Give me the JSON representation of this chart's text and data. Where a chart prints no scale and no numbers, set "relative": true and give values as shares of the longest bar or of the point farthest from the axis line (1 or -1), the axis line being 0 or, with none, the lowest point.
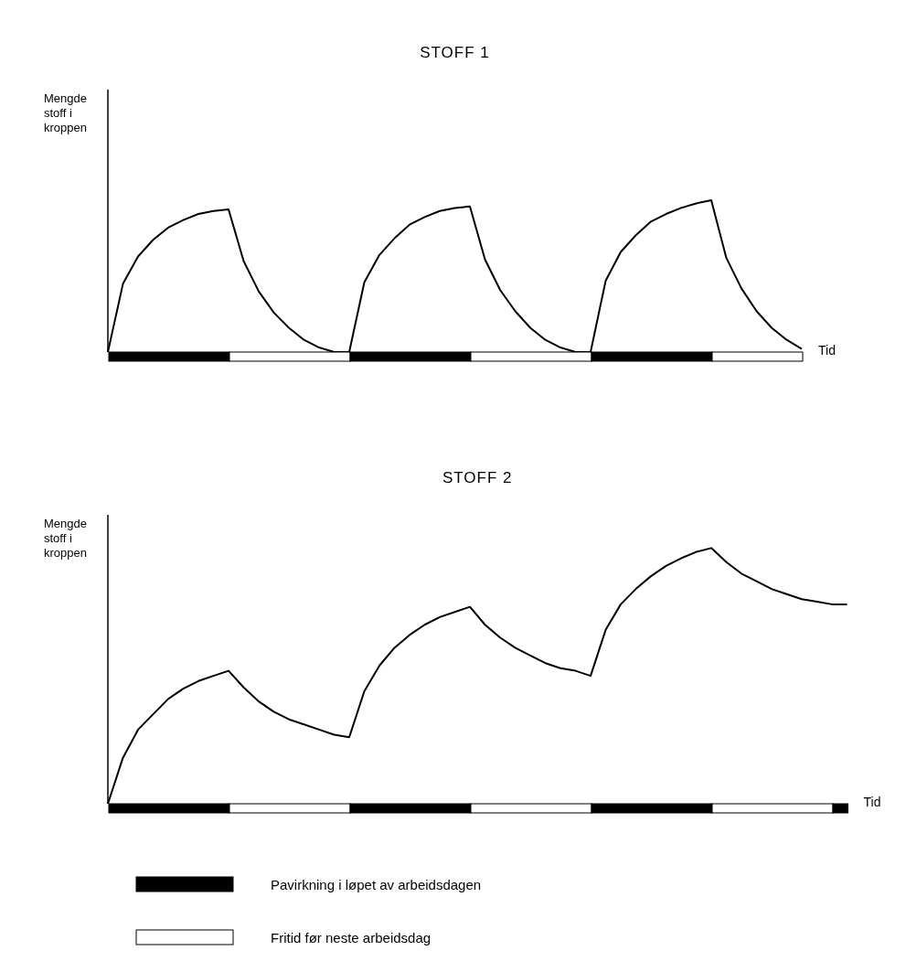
{
  "chart_data": [
    {
      "type": "line",
      "title": "STOFF 1",
      "xlabel": "Tid",
      "ylabel": "Mengde stoff i kroppen",
      "relative": true,
      "marker": "none",
      "grid": false,
      "categories": [
        null,
        null,
        null,
        null,
        null,
        null,
        null,
        null,
        null,
        null,
        null,
        null,
        null,
        null,
        null,
        null,
        null,
        null,
        null,
        null,
        null,
        null,
        null,
        null,
        null,
        null,
        null,
        null,
        null,
        null,
        null,
        null,
        null,
        null,
        null,
        null,
        null,
        null,
        null,
        null,
        null,
        null,
        null,
        null,
        null,
        null,
        null
      ],
      "series": [
        {
          "color": "#000000",
          "values": [
            0,
            0.45,
            0.63,
            0.74,
            0.82,
            0.87,
            0.91,
            0.93,
            0.94,
            0.6,
            0.4,
            0.26,
            0.16,
            0.08,
            0.03,
            0,
            0,
            0.46,
            0.64,
            0.75,
            0.84,
            0.89,
            0.93,
            0.95,
            0.96,
            0.61,
            0.41,
            0.27,
            0.16,
            0.08,
            0.03,
            0,
            0,
            0.47,
            0.66,
            0.77,
            0.86,
            0.91,
            0.95,
            0.98,
            1,
            0.62,
            0.42,
            0.27,
            0.16,
            0.08,
            0.02
          ]
        }
      ]
    },
    {
      "type": "line",
      "title": "STOFF 2",
      "xlabel": "Tid",
      "ylabel": "Mengde stoff i kroppen",
      "relative": true,
      "marker": "none",
      "grid": false,
      "categories": [
        null,
        null,
        null,
        null,
        null,
        null,
        null,
        null,
        null,
        null,
        null,
        null,
        null,
        null,
        null,
        null,
        null,
        null,
        null,
        null,
        null,
        null,
        null,
        null,
        null,
        null,
        null,
        null,
        null,
        null,
        null,
        null,
        null,
        null,
        null,
        null,
        null,
        null,
        null,
        null,
        null,
        null,
        null,
        null,
        null,
        null,
        null,
        null,
        null,
        null
      ],
      "series": [
        {
          "color": "#000000",
          "values": [
            0,
            0.18,
            0.29,
            0.35,
            0.41,
            0.45,
            0.48,
            0.5,
            0.52,
            0.455,
            0.4,
            0.36,
            0.33,
            0.31,
            0.29,
            0.27,
            0.26,
            0.44,
            0.54,
            0.61,
            0.66,
            0.7,
            0.73,
            0.75,
            0.77,
            0.7,
            0.65,
            0.61,
            0.58,
            0.55,
            0.53,
            0.52,
            0.5,
            0.68,
            0.78,
            0.84,
            0.89,
            0.93,
            0.96,
            0.985,
            1,
            0.945,
            0.9,
            0.87,
            0.84,
            0.82,
            0.8,
            0.79,
            0.78,
            0.78
          ]
        }
      ],
      "annotations": [
        "Pavirkning i løpet av arbeidsdagen",
        "Fritid før neste arbeidsdag"
      ]
    }
  ]
}
